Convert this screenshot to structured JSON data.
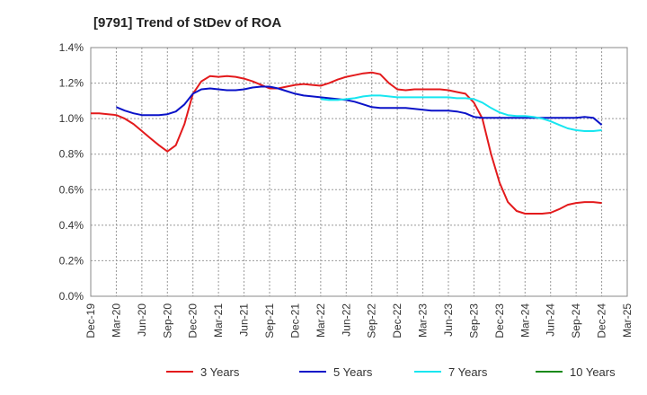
{
  "chart_data": {
    "type": "line",
    "title": "[9791]  Trend of StDev of ROA",
    "xlabel": "",
    "ylabel": "",
    "ylim": [
      0,
      1.4
    ],
    "yticks": [
      "0.0%",
      "0.2%",
      "0.4%",
      "0.6%",
      "0.8%",
      "1.0%",
      "1.2%",
      "1.4%"
    ],
    "ytick_values": [
      0,
      0.2,
      0.4,
      0.6,
      0.8,
      1.0,
      1.2,
      1.4
    ],
    "categories": [
      "Dec-19",
      "Mar-20",
      "Jun-20",
      "Sep-20",
      "Dec-20",
      "Mar-21",
      "Jun-21",
      "Sep-21",
      "Dec-21",
      "Mar-22",
      "Jun-22",
      "Sep-22",
      "Dec-22",
      "Mar-23",
      "Jun-23",
      "Sep-23",
      "Dec-23",
      "Mar-24",
      "Jun-24",
      "Sep-24",
      "Dec-24",
      "Mar-25"
    ],
    "grid": true,
    "legend_position": "bottom",
    "series": [
      {
        "name": "3 Years",
        "color": "#e31a1c",
        "x": [
          0,
          0.33,
          0.67,
          1,
          1.33,
          1.67,
          2,
          2.33,
          2.67,
          3,
          3.33,
          3.67,
          4,
          4.33,
          4.67,
          5,
          5.33,
          5.67,
          6,
          6.33,
          6.67,
          7,
          7.33,
          7.67,
          8,
          8.33,
          8.67,
          9,
          9.33,
          9.67,
          10,
          10.33,
          10.67,
          11,
          11.33,
          11.67,
          12,
          12.33,
          12.67,
          13,
          13.33,
          13.67,
          14,
          14.33,
          14.67,
          15,
          15.33,
          15.67,
          16,
          16.33,
          16.67,
          17,
          17.33,
          17.67,
          18,
          18.33,
          18.67,
          19,
          19.33,
          19.67,
          20
        ],
        "values": [
          1.03,
          1.03,
          1.025,
          1.02,
          1.0,
          0.97,
          0.93,
          0.89,
          0.85,
          0.815,
          0.85,
          0.97,
          1.14,
          1.21,
          1.24,
          1.235,
          1.24,
          1.235,
          1.225,
          1.21,
          1.19,
          1.17,
          1.17,
          1.18,
          1.19,
          1.195,
          1.19,
          1.185,
          1.2,
          1.22,
          1.235,
          1.245,
          1.255,
          1.26,
          1.25,
          1.2,
          1.165,
          1.16,
          1.165,
          1.165,
          1.165,
          1.165,
          1.16,
          1.15,
          1.14,
          1.09,
          1.0,
          0.8,
          0.64,
          0.53,
          0.48,
          0.465,
          0.465,
          0.465,
          0.47,
          0.49,
          0.515,
          0.525,
          0.53,
          0.53,
          0.525
        ]
      },
      {
        "name": "5 Years",
        "color": "#0a12c8",
        "x": [
          1,
          1.33,
          1.67,
          2,
          2.33,
          2.67,
          3,
          3.33,
          3.67,
          4,
          4.33,
          4.67,
          5,
          5.33,
          5.67,
          6,
          6.33,
          6.67,
          7,
          7.33,
          7.67,
          8,
          8.33,
          8.67,
          9,
          9.33,
          9.67,
          10,
          10.33,
          10.67,
          11,
          11.33,
          11.67,
          12,
          12.33,
          12.67,
          13,
          13.33,
          13.67,
          14,
          14.33,
          14.67,
          15,
          15.33,
          15.67,
          16,
          16.33,
          16.67,
          17,
          17.33,
          17.67,
          18,
          18.33,
          18.67,
          19,
          19.33,
          19.67,
          20
        ],
        "values": [
          1.065,
          1.045,
          1.03,
          1.02,
          1.02,
          1.02,
          1.025,
          1.04,
          1.08,
          1.14,
          1.165,
          1.17,
          1.165,
          1.16,
          1.16,
          1.165,
          1.175,
          1.18,
          1.18,
          1.17,
          1.155,
          1.14,
          1.13,
          1.125,
          1.12,
          1.115,
          1.11,
          1.105,
          1.095,
          1.08,
          1.065,
          1.06,
          1.06,
          1.06,
          1.06,
          1.055,
          1.05,
          1.045,
          1.045,
          1.045,
          1.04,
          1.03,
          1.01,
          1.005,
          1.005,
          1.005,
          1.005,
          1.005,
          1.005,
          1.005,
          1.005,
          1.005,
          1.005,
          1.005,
          1.005,
          1.01,
          1.005,
          0.965
        ]
      },
      {
        "name": "7 Years",
        "color": "#17e6f0",
        "x": [
          9,
          9.33,
          9.67,
          10,
          10.33,
          10.67,
          11,
          11.33,
          11.67,
          12,
          12.33,
          12.67,
          13,
          13.33,
          13.67,
          14,
          14.33,
          14.67,
          15,
          15.33,
          15.67,
          16,
          16.33,
          16.67,
          17,
          17.33,
          17.67,
          18,
          18.33,
          18.67,
          19,
          19.33,
          19.67,
          20
        ],
        "values": [
          1.11,
          1.105,
          1.105,
          1.11,
          1.115,
          1.125,
          1.13,
          1.13,
          1.125,
          1.12,
          1.12,
          1.12,
          1.12,
          1.12,
          1.12,
          1.12,
          1.115,
          1.115,
          1.11,
          1.09,
          1.06,
          1.035,
          1.02,
          1.015,
          1.015,
          1.01,
          1.0,
          0.985,
          0.965,
          0.945,
          0.935,
          0.93,
          0.93,
          0.935
        ]
      },
      {
        "name": "10 Years",
        "color": "#1a8a1a",
        "x": [],
        "values": []
      }
    ]
  }
}
